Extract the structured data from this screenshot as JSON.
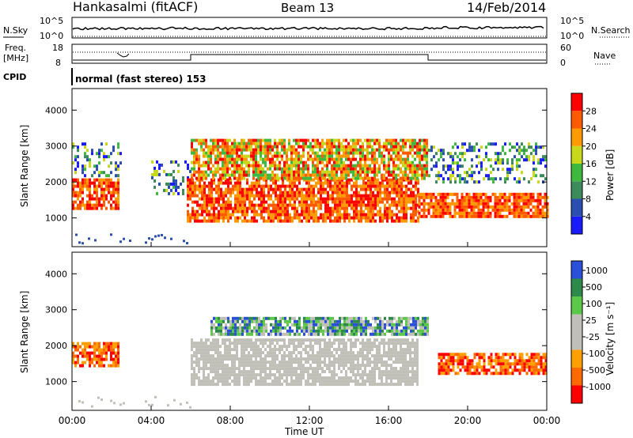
{
  "header": {
    "station": "Hankasalmi (fitACF)",
    "beam": "Beam 13",
    "date": "14/Feb/2014"
  },
  "noise_panel": {
    "left_label": "N.Sky",
    "right_label": "N.Search",
    "ticks_left": [
      "10^5",
      "10^0"
    ],
    "ticks_right": [
      "10^5",
      "10^0"
    ]
  },
  "freq_panel": {
    "left_label_1": "Freq.",
    "left_label_2": "[MHz]",
    "right_label": "Nave",
    "ticks_left": [
      "18",
      "8"
    ],
    "ticks_right": [
      "60",
      "0"
    ]
  },
  "cpid": {
    "label": "CPID",
    "text": "normal (fast stereo) 153"
  },
  "x_axis": {
    "title": "Time UT",
    "ticks": [
      "00:00",
      "04:00",
      "08:00",
      "12:00",
      "16:00",
      "20:00",
      "00:00"
    ]
  },
  "colors": {
    "power": [
      "#1a1aff",
      "#2a4fb0",
      "#3d8a5a",
      "#3fb83f",
      "#c8d81a",
      "#ff9a00",
      "#ff5a00",
      "#ff0000"
    ],
    "velocity": [
      "#ff0000",
      "#ff6a00",
      "#ffa000",
      "#c0c0b8",
      "#c0c0b8",
      "#5cc84a",
      "#2e8a4a",
      "#2a4fd8"
    ]
  },
  "chart_data": [
    {
      "type": "heatmap",
      "name": "Power",
      "ylabel": "Slant Range [km]",
      "xlabel": "",
      "yticks": [
        1000,
        2000,
        3000,
        4000
      ],
      "ylim": [
        200,
        4600
      ],
      "xlim_hours": [
        0,
        24
      ],
      "colorbar": {
        "label": "Power [dB]",
        "ticks": [
          "4",
          "8",
          "12",
          "16",
          "20",
          "24",
          "28"
        ]
      },
      "regions": [
        {
          "t0": 0.0,
          "t1": 2.3,
          "r0": 1300,
          "r1": 2100,
          "level": "high"
        },
        {
          "t0": 0.0,
          "t1": 2.5,
          "r0": 2200,
          "r1": 3100,
          "level": "low"
        },
        {
          "t0": 4.0,
          "t1": 6.0,
          "r0": 1700,
          "r1": 2600,
          "level": "low"
        },
        {
          "t0": 5.8,
          "t1": 17.5,
          "r0": 900,
          "r1": 2100,
          "level": "high"
        },
        {
          "t0": 6.0,
          "t1": 18.0,
          "r0": 2100,
          "r1": 3200,
          "level": "mid"
        },
        {
          "t0": 17.5,
          "t1": 24.0,
          "r0": 1000,
          "r1": 1700,
          "level": "high"
        },
        {
          "t0": 18.0,
          "t1": 24.0,
          "r0": 2000,
          "r1": 3100,
          "level": "low"
        }
      ]
    },
    {
      "type": "heatmap",
      "name": "Velocity",
      "ylabel": "Slant Range [km]",
      "xlabel": "Time UT",
      "yticks": [
        1000,
        2000,
        3000,
        4000
      ],
      "ylim": [
        200,
        4600
      ],
      "xlim_hours": [
        0,
        24
      ],
      "colorbar": {
        "label": "Velocity [m s⁻¹]",
        "ticks": [
          "1000",
          "500",
          "100",
          "25",
          "-25",
          "-100",
          "-500",
          "-1000"
        ]
      },
      "regions": [
        {
          "t0": 0.0,
          "t1": 2.3,
          "r0": 1400,
          "r1": 2100,
          "level": "neg"
        },
        {
          "t0": 6.0,
          "t1": 17.5,
          "r0": 900,
          "r1": 2200,
          "level": "zero"
        },
        {
          "t0": 7.0,
          "t1": 18.0,
          "r0": 2300,
          "r1": 2800,
          "level": "pos"
        },
        {
          "t0": 18.5,
          "t1": 24.0,
          "r0": 1200,
          "r1": 1800,
          "level": "neg"
        }
      ]
    }
  ]
}
